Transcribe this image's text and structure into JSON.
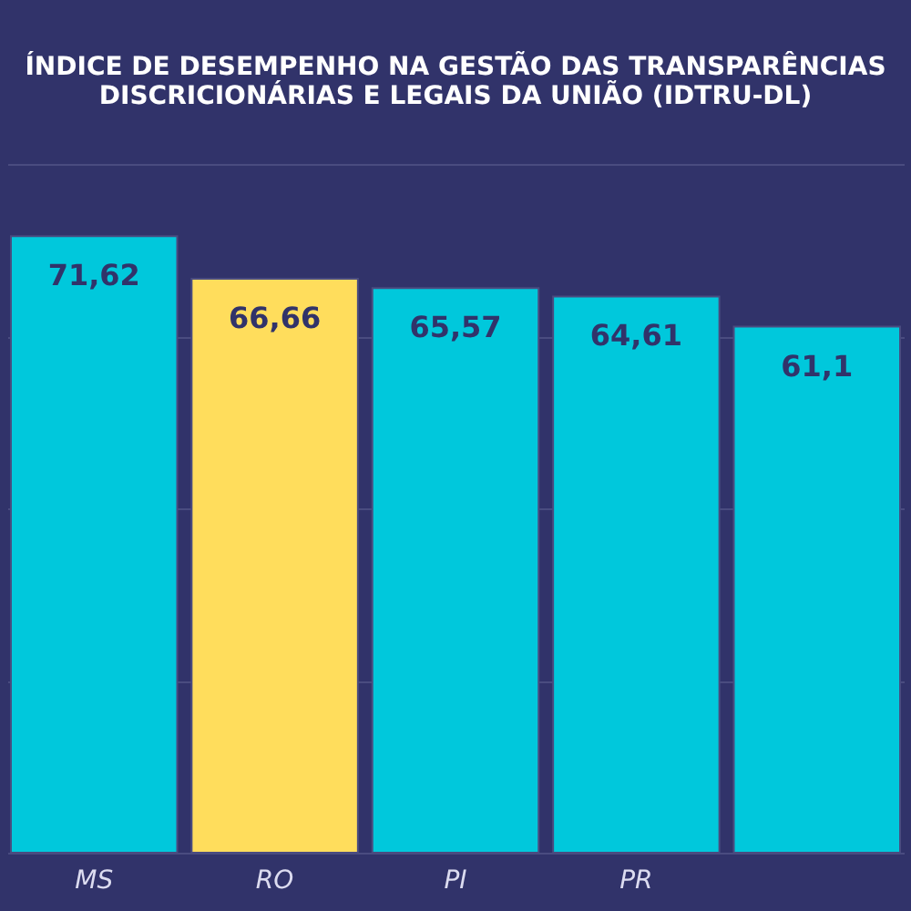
{
  "chart_data": {
    "type": "bar",
    "title": "ÍNDICE DE DESEMPENHO NA GESTÃO DAS TRANSPARÊNCIAS\nDISCRICIONÁRIAS E LEGAIS DA UNIÃO (IDTRU-DL)",
    "categories": [
      "MS",
      "RO",
      "PI",
      "PR",
      null
    ],
    "values": [
      71.62,
      66.66,
      65.57,
      64.61,
      61.1
    ],
    "colors": [
      "#00c8dc",
      "#ffdd5c",
      "#00c8dc",
      "#00c8dc",
      "#00c8dc"
    ],
    "value_labels": [
      "71,62",
      "66,66",
      "65,57",
      "64,61",
      "61,1"
    ],
    "ylim": [
      0,
      80
    ],
    "yticks": [
      {
        "value": 0,
        "label": null
      },
      {
        "value": 20,
        "label": null
      },
      {
        "value": 40,
        "label": null
      },
      {
        "value": 60,
        "label": null
      },
      {
        "value": 80,
        "label": null
      }
    ],
    "tick_labels": "x",
    "grid": "y"
  }
}
